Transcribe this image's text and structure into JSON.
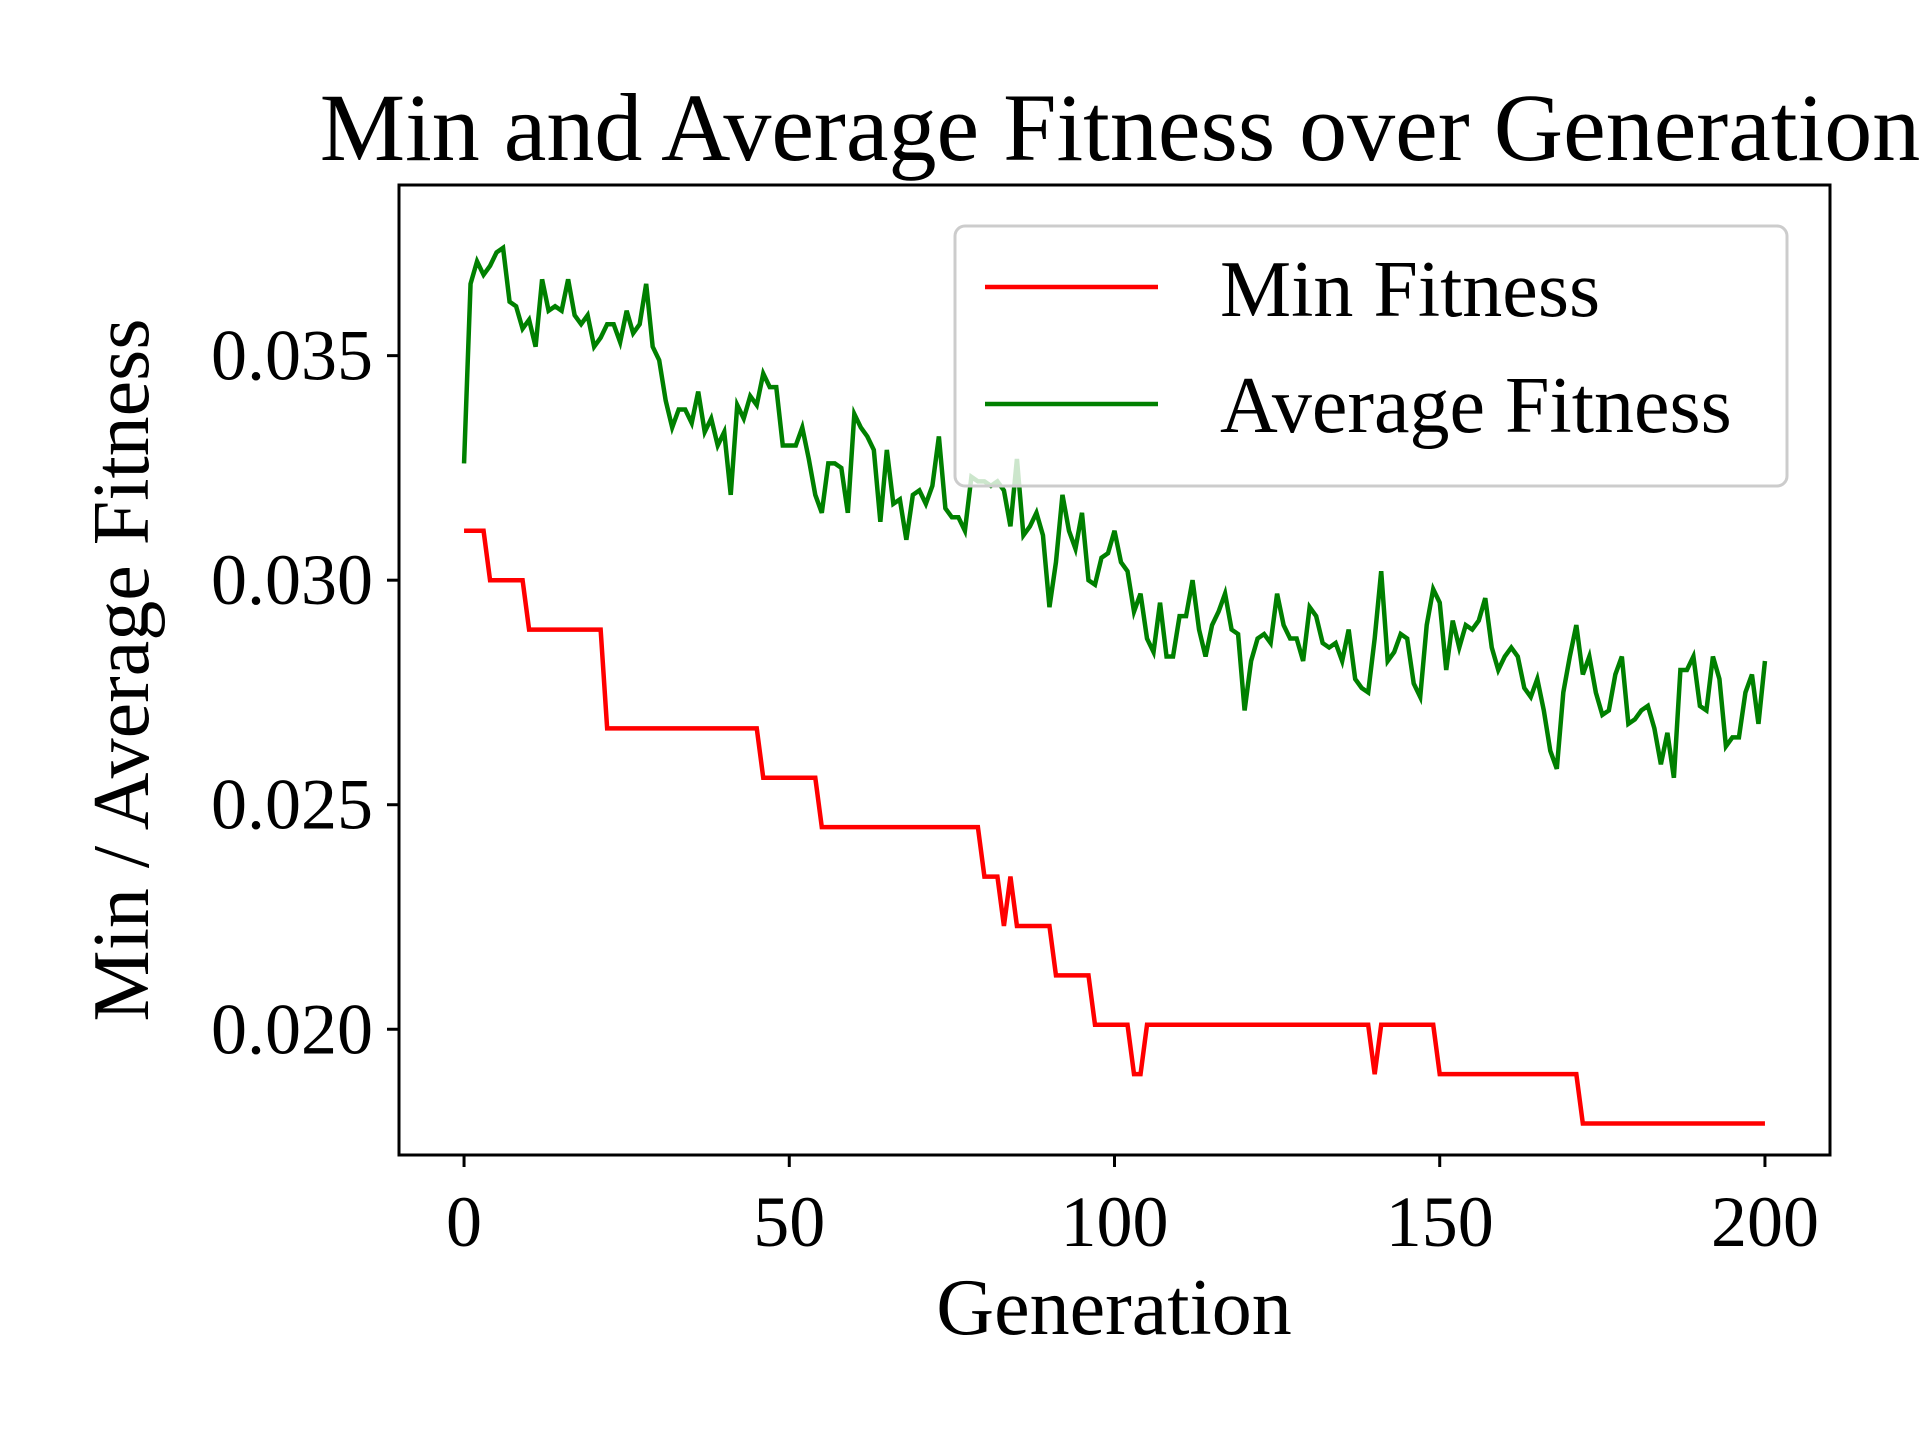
{
  "chart_data": {
    "type": "line",
    "title": "Min and Average Fitness over Generation",
    "xlabel": "Generation",
    "ylabel": "Min / Average Fitness",
    "xlim": [
      -10,
      210
    ],
    "ylim": [
      0.0172,
      0.0388
    ],
    "xticks": [
      0,
      50,
      100,
      150,
      200
    ],
    "xtick_labels": [
      "0",
      "50",
      "100",
      "150",
      "200"
    ],
    "yticks": [
      0.02,
      0.025,
      0.03,
      0.035
    ],
    "ytick_labels": [
      "0.020",
      "0.025",
      "0.030",
      "0.035"
    ],
    "grid": false,
    "legend_position": "top-right",
    "series": [
      {
        "name": "Min Fitness",
        "color": "#ff0000",
        "points": [
          [
            0,
            0.0311
          ],
          [
            3,
            0.0311
          ],
          [
            4,
            0.03
          ],
          [
            9,
            0.03
          ],
          [
            10,
            0.0289
          ],
          [
            21,
            0.0289
          ],
          [
            22,
            0.0267
          ],
          [
            45,
            0.0267
          ],
          [
            46,
            0.0256
          ],
          [
            54,
            0.0256
          ],
          [
            55,
            0.0245
          ],
          [
            79,
            0.0245
          ],
          [
            80,
            0.0234
          ],
          [
            82,
            0.0234
          ],
          [
            83,
            0.0223
          ],
          [
            84,
            0.0234
          ],
          [
            85,
            0.0223
          ],
          [
            90,
            0.0223
          ],
          [
            91,
            0.0212
          ],
          [
            96,
            0.0212
          ],
          [
            97,
            0.0201
          ],
          [
            102,
            0.0201
          ],
          [
            103,
            0.019
          ],
          [
            104,
            0.019
          ],
          [
            105,
            0.0201
          ],
          [
            139,
            0.0201
          ],
          [
            140,
            0.019
          ],
          [
            141,
            0.0201
          ],
          [
            149,
            0.0201
          ],
          [
            150,
            0.019
          ],
          [
            171,
            0.019
          ],
          [
            172,
            0.0179
          ],
          [
            200,
            0.0179
          ]
        ]
      },
      {
        "name": "Average Fitness",
        "color": "#008000",
        "points": [
          [
            0,
            0.0326
          ],
          [
            1,
            0.0366
          ],
          [
            2,
            0.0371
          ],
          [
            3,
            0.0368
          ],
          [
            4,
            0.037
          ],
          [
            5,
            0.0373
          ],
          [
            6,
            0.0374
          ],
          [
            7,
            0.0362
          ],
          [
            8,
            0.0361
          ],
          [
            9,
            0.0356
          ],
          [
            10,
            0.0358
          ],
          [
            11,
            0.0352
          ],
          [
            12,
            0.0367
          ],
          [
            13,
            0.036
          ],
          [
            14,
            0.0361
          ],
          [
            15,
            0.036
          ],
          [
            16,
            0.0367
          ],
          [
            17,
            0.0359
          ],
          [
            18,
            0.0357
          ],
          [
            19,
            0.0359
          ],
          [
            20,
            0.0352
          ],
          [
            21,
            0.0354
          ],
          [
            22,
            0.0357
          ],
          [
            23,
            0.0357
          ],
          [
            24,
            0.0353
          ],
          [
            25,
            0.036
          ],
          [
            26,
            0.0355
          ],
          [
            27,
            0.0357
          ],
          [
            28,
            0.0366
          ],
          [
            29,
            0.0352
          ],
          [
            30,
            0.0349
          ],
          [
            31,
            0.034
          ],
          [
            32,
            0.0334
          ],
          [
            33,
            0.0338
          ],
          [
            34,
            0.0338
          ],
          [
            35,
            0.0335
          ],
          [
            36,
            0.0342
          ],
          [
            37,
            0.0333
          ],
          [
            38,
            0.0336
          ],
          [
            39,
            0.033
          ],
          [
            40,
            0.0333
          ],
          [
            41,
            0.0319
          ],
          [
            42,
            0.0339
          ],
          [
            43,
            0.0336
          ],
          [
            44,
            0.0341
          ],
          [
            45,
            0.0339
          ],
          [
            46,
            0.0346
          ],
          [
            47,
            0.0343
          ],
          [
            48,
            0.0343
          ],
          [
            49,
            0.033
          ],
          [
            50,
            0.033
          ],
          [
            51,
            0.033
          ],
          [
            52,
            0.0334
          ],
          [
            53,
            0.0327
          ],
          [
            54,
            0.0319
          ],
          [
            55,
            0.0315
          ],
          [
            56,
            0.0326
          ],
          [
            57,
            0.0326
          ],
          [
            58,
            0.0325
          ],
          [
            59,
            0.0315
          ],
          [
            60,
            0.0337
          ],
          [
            61,
            0.0334
          ],
          [
            62,
            0.0332
          ],
          [
            63,
            0.0329
          ],
          [
            64,
            0.0313
          ],
          [
            65,
            0.0329
          ],
          [
            66,
            0.0317
          ],
          [
            67,
            0.0318
          ],
          [
            68,
            0.0309
          ],
          [
            69,
            0.0319
          ],
          [
            70,
            0.032
          ],
          [
            71,
            0.0317
          ],
          [
            72,
            0.0321
          ],
          [
            73,
            0.0332
          ],
          [
            74,
            0.0316
          ],
          [
            75,
            0.0314
          ],
          [
            76,
            0.0314
          ],
          [
            77,
            0.0311
          ],
          [
            78,
            0.0323
          ],
          [
            79,
            0.0322
          ],
          [
            80,
            0.0322
          ],
          [
            81,
            0.0321
          ],
          [
            82,
            0.0322
          ],
          [
            83,
            0.032
          ],
          [
            84,
            0.0312
          ],
          [
            85,
            0.0327
          ],
          [
            86,
            0.031
          ],
          [
            87,
            0.0312
          ],
          [
            88,
            0.0315
          ],
          [
            89,
            0.031
          ],
          [
            90,
            0.0294
          ],
          [
            91,
            0.0304
          ],
          [
            92,
            0.0319
          ],
          [
            93,
            0.0311
          ],
          [
            94,
            0.0307
          ],
          [
            95,
            0.0315
          ],
          [
            96,
            0.03
          ],
          [
            97,
            0.0299
          ],
          [
            98,
            0.0305
          ],
          [
            99,
            0.0306
          ],
          [
            100,
            0.0311
          ],
          [
            101,
            0.0304
          ],
          [
            102,
            0.0302
          ],
          [
            103,
            0.0293
          ],
          [
            104,
            0.0297
          ],
          [
            105,
            0.0287
          ],
          [
            106,
            0.0284
          ],
          [
            107,
            0.0295
          ],
          [
            108,
            0.0283
          ],
          [
            109,
            0.0283
          ],
          [
            110,
            0.0292
          ],
          [
            111,
            0.0292
          ],
          [
            112,
            0.03
          ],
          [
            113,
            0.0289
          ],
          [
            114,
            0.0283
          ],
          [
            115,
            0.029
          ],
          [
            116,
            0.0293
          ],
          [
            117,
            0.0297
          ],
          [
            118,
            0.0289
          ],
          [
            119,
            0.0288
          ],
          [
            120,
            0.0271
          ],
          [
            121,
            0.0282
          ],
          [
            122,
            0.0287
          ],
          [
            123,
            0.0288
          ],
          [
            124,
            0.0286
          ],
          [
            125,
            0.0297
          ],
          [
            126,
            0.029
          ],
          [
            127,
            0.0287
          ],
          [
            128,
            0.0287
          ],
          [
            129,
            0.0282
          ],
          [
            130,
            0.0294
          ],
          [
            131,
            0.0292
          ],
          [
            132,
            0.0286
          ],
          [
            133,
            0.0285
          ],
          [
            134,
            0.0286
          ],
          [
            135,
            0.0282
          ],
          [
            136,
            0.0289
          ],
          [
            137,
            0.0278
          ],
          [
            138,
            0.0276
          ],
          [
            139,
            0.0275
          ],
          [
            140,
            0.0287
          ],
          [
            141,
            0.0302
          ],
          [
            142,
            0.0282
          ],
          [
            143,
            0.0284
          ],
          [
            144,
            0.0288
          ],
          [
            145,
            0.0287
          ],
          [
            146,
            0.0277
          ],
          [
            147,
            0.0274
          ],
          [
            148,
            0.029
          ],
          [
            149,
            0.0298
          ],
          [
            150,
            0.0295
          ],
          [
            151,
            0.028
          ],
          [
            152,
            0.0291
          ],
          [
            153,
            0.0285
          ],
          [
            154,
            0.029
          ],
          [
            155,
            0.0289
          ],
          [
            156,
            0.0291
          ],
          [
            157,
            0.0296
          ],
          [
            158,
            0.0285
          ],
          [
            159,
            0.028
          ],
          [
            160,
            0.0283
          ],
          [
            161,
            0.0285
          ],
          [
            162,
            0.0283
          ],
          [
            163,
            0.0276
          ],
          [
            164,
            0.0274
          ],
          [
            165,
            0.0278
          ],
          [
            166,
            0.0271
          ],
          [
            167,
            0.0262
          ],
          [
            168,
            0.0258
          ],
          [
            169,
            0.0275
          ],
          [
            170,
            0.0283
          ],
          [
            171,
            0.029
          ],
          [
            172,
            0.0279
          ],
          [
            173,
            0.0283
          ],
          [
            174,
            0.0275
          ],
          [
            175,
            0.027
          ],
          [
            176,
            0.0271
          ],
          [
            177,
            0.0279
          ],
          [
            178,
            0.0283
          ],
          [
            179,
            0.0268
          ],
          [
            180,
            0.0269
          ],
          [
            181,
            0.0271
          ],
          [
            182,
            0.0272
          ],
          [
            183,
            0.0267
          ],
          [
            184,
            0.0259
          ],
          [
            185,
            0.0266
          ],
          [
            186,
            0.0256
          ],
          [
            187,
            0.028
          ],
          [
            188,
            0.028
          ],
          [
            189,
            0.0283
          ],
          [
            190,
            0.0272
          ],
          [
            191,
            0.0271
          ],
          [
            192,
            0.0283
          ],
          [
            193,
            0.0278
          ],
          [
            194,
            0.0263
          ],
          [
            195,
            0.0265
          ],
          [
            196,
            0.0265
          ],
          [
            197,
            0.0275
          ],
          [
            198,
            0.0279
          ],
          [
            199,
            0.0268
          ],
          [
            200,
            0.0282
          ]
        ]
      }
    ]
  }
}
